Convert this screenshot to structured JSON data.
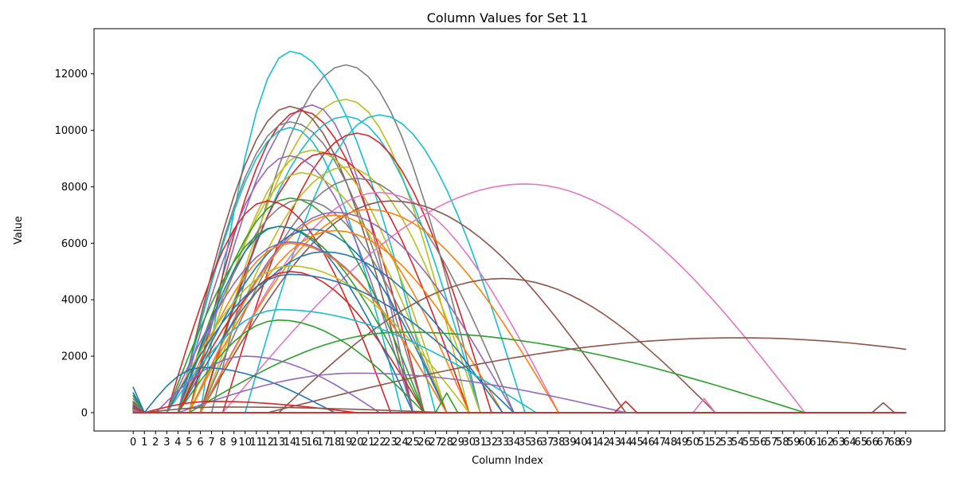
{
  "chart_data": {
    "type": "line",
    "title": "Column Values for Set 11",
    "xlabel": "Column Index",
    "ylabel": "Value",
    "xlim": [
      -3.5,
      72.5
    ],
    "ylim": [
      -650,
      13600
    ],
    "x_ticks": [
      0,
      1,
      2,
      3,
      4,
      5,
      6,
      7,
      8,
      9,
      10,
      11,
      12,
      13,
      14,
      15,
      16,
      17,
      18,
      19,
      20,
      21,
      22,
      23,
      24,
      25,
      26,
      27,
      28,
      29,
      30,
      31,
      32,
      33,
      34,
      35,
      36,
      37,
      38,
      39,
      40,
      41,
      42,
      43,
      44,
      45,
      46,
      47,
      48,
      49,
      50,
      51,
      52,
      53,
      54,
      55,
      56,
      57,
      58,
      59,
      60,
      61,
      62,
      63,
      64,
      65,
      66,
      67,
      68,
      69
    ],
    "y_ticks": [
      0,
      2000,
      4000,
      6000,
      8000,
      10000,
      12000
    ],
    "grid": false,
    "legend": "none",
    "series_count": 50,
    "palette": [
      "#1f77b4",
      "#ff7f0e",
      "#2ca02c",
      "#d62728",
      "#9467bd",
      "#8c564b",
      "#e377c2",
      "#7f7f7f",
      "#bcbd22",
      "#17becf"
    ],
    "series": [
      {
        "color": "#17becf",
        "peak_x": 14,
        "peak_y": 12800,
        "start_x": 6,
        "end_x": 27,
        "y0": 200
      },
      {
        "color": "#7f7f7f",
        "peak_x": 19,
        "peak_y": 12320,
        "start_x": 7,
        "end_x": 31,
        "y0": 120
      },
      {
        "color": "#bcbd22",
        "peak_x": 19,
        "peak_y": 11100,
        "start_x": 6,
        "end_x": 30,
        "y0": 150
      },
      {
        "color": "#9467bd",
        "peak_x": 16,
        "peak_y": 10900,
        "start_x": 5,
        "end_x": 25,
        "y0": 180
      },
      {
        "color": "#8c564b",
        "peak_x": 14,
        "peak_y": 10850,
        "start_x": 4,
        "end_x": 25,
        "y0": 350
      },
      {
        "color": "#d62728",
        "peak_x": 15,
        "peak_y": 10700,
        "start_x": 5,
        "end_x": 26,
        "y0": 100
      },
      {
        "color": "#17becf",
        "peak_x": 22,
        "peak_y": 10550,
        "start_x": 10,
        "end_x": 35,
        "y0": 50
      },
      {
        "color": "#17becf",
        "peak_x": 19,
        "peak_y": 10500,
        "start_x": 6,
        "end_x": 31,
        "y0": 70
      },
      {
        "color": "#7f7f7f",
        "peak_x": 14,
        "peak_y": 10300,
        "start_x": 4,
        "end_x": 26,
        "y0": 300
      },
      {
        "color": "#17becf",
        "peak_x": 14,
        "peak_y": 10100,
        "start_x": 4,
        "end_x": 24,
        "y0": 100
      },
      {
        "color": "#d62728",
        "peak_x": 20,
        "peak_y": 9900,
        "start_x": 8,
        "end_x": 32,
        "y0": 80
      },
      {
        "color": "#bcbd22",
        "peak_x": 16,
        "peak_y": 9300,
        "start_x": 5,
        "end_x": 28,
        "y0": 120
      },
      {
        "color": "#d62728",
        "peak_x": 17,
        "peak_y": 9200,
        "start_x": 6,
        "end_x": 30,
        "y0": 60
      },
      {
        "color": "#9467bd",
        "peak_x": 14,
        "peak_y": 9100,
        "start_x": 4,
        "end_x": 25,
        "y0": 90
      },
      {
        "color": "#bcbd22",
        "peak_x": 19,
        "peak_y": 8700,
        "start_x": 6,
        "end_x": 31,
        "y0": 110
      },
      {
        "color": "#bcbd22",
        "peak_x": 15,
        "peak_y": 8500,
        "start_x": 5,
        "end_x": 28,
        "y0": 130
      },
      {
        "color": "#7f7f7f",
        "peak_x": 20,
        "peak_y": 8300,
        "start_x": 6,
        "end_x": 34,
        "y0": 90
      },
      {
        "color": "#e377c2",
        "peak_x": 35,
        "peak_y": 8100,
        "start_x": 8,
        "end_x": 60,
        "y0": 0
      },
      {
        "color": "#e377c2",
        "peak_x": 22,
        "peak_y": 7800,
        "start_x": 6,
        "end_x": 38,
        "y0": 40
      },
      {
        "color": "#2ca02c",
        "peak_x": 14,
        "peak_y": 7600,
        "start_x": 4,
        "end_x": 26,
        "y0": 600
      },
      {
        "color": "#7f7f7f",
        "peak_x": 15,
        "peak_y": 7550,
        "start_x": 4,
        "end_x": 28,
        "y0": 140
      },
      {
        "color": "#8c564b",
        "peak_x": 23,
        "peak_y": 7500,
        "start_x": 6,
        "end_x": 44,
        "y0": 70
      },
      {
        "color": "#d62728",
        "peak_x": 12,
        "peak_y": 7500,
        "start_x": 3,
        "end_x": 23,
        "y0": 200
      },
      {
        "color": "#ff7f0e",
        "peak_x": 21,
        "peak_y": 7200,
        "start_x": 6,
        "end_x": 38,
        "y0": 300
      },
      {
        "color": "#9467bd",
        "peak_x": 18,
        "peak_y": 7100,
        "start_x": 5,
        "end_x": 34,
        "y0": 100
      },
      {
        "color": "#ff7f0e",
        "peak_x": 18,
        "peak_y": 7000,
        "start_x": 5,
        "end_x": 30,
        "y0": 250
      },
      {
        "color": "#2ca02c",
        "peak_x": 13,
        "peak_y": 6600,
        "start_x": 3,
        "end_x": 26,
        "y0": 400
      },
      {
        "color": "#1f77b4",
        "peak_x": 13,
        "peak_y": 6600,
        "start_x": 4,
        "end_x": 25,
        "y0": 150
      },
      {
        "color": "#1f77b4",
        "peak_x": 16,
        "peak_y": 6500,
        "start_x": 4,
        "end_x": 28,
        "y0": 250
      },
      {
        "color": "#ff7f0e",
        "peak_x": 18,
        "peak_y": 6450,
        "start_x": 5,
        "end_x": 33,
        "y0": 200
      },
      {
        "color": "#9467bd",
        "peak_x": 14,
        "peak_y": 6050,
        "start_x": 3,
        "end_x": 28,
        "y0": 500
      },
      {
        "color": "#ff7f0e",
        "peak_x": 14,
        "peak_y": 6000,
        "start_x": 4,
        "end_x": 28,
        "y0": 120
      },
      {
        "color": "#1f77b4",
        "peak_x": 17,
        "peak_y": 5700,
        "start_x": 4,
        "end_x": 33,
        "y0": 200
      },
      {
        "color": "#bcbd22",
        "peak_x": 14,
        "peak_y": 5200,
        "start_x": 3,
        "end_x": 30,
        "y0": 300
      },
      {
        "color": "#d62728",
        "peak_x": 14,
        "peak_y": 5000,
        "start_x": 4,
        "end_x": 26,
        "y0": 150
      },
      {
        "color": "#1f77b4",
        "peak_x": 14,
        "peak_y": 4900,
        "start_x": 3,
        "end_x": 34,
        "y0": 700
      },
      {
        "color": "#8c564b",
        "peak_x": 33,
        "peak_y": 4750,
        "start_x": 13,
        "end_x": 52,
        "y0": 0
      },
      {
        "color": "#17becf",
        "peak_x": 13,
        "peak_y": 3650,
        "start_x": 3,
        "end_x": 36,
        "y0": 250
      },
      {
        "color": "#2ca02c",
        "peak_x": 13,
        "peak_y": 3280,
        "start_x": 4,
        "end_x": 26,
        "y0": 150
      },
      {
        "color": "#2ca02c",
        "peak_x": 24,
        "peak_y": 2850,
        "start_x": 5,
        "end_x": 60,
        "y0": 600
      },
      {
        "color": "#8c564b",
        "peak_x": 54,
        "peak_y": 2650,
        "start_x": 12,
        "end_x": 96,
        "y0": 0
      },
      {
        "color": "#9467bd",
        "peak_x": 10,
        "peak_y": 2000,
        "start_x": 2,
        "end_x": 22,
        "y0": 300
      },
      {
        "color": "#1f77b4",
        "peak_x": 6,
        "peak_y": 1600,
        "start_x": 1,
        "end_x": 18,
        "y0": 900
      },
      {
        "color": "#9467bd",
        "peak_x": 20,
        "peak_y": 1400,
        "start_x": 4,
        "end_x": 44,
        "y0": 50
      },
      {
        "color": "#d62728",
        "peak_x": 7,
        "peak_y": 400,
        "start_x": 1,
        "end_x": 20,
        "y0": 250
      },
      {
        "color": "#8c564b",
        "peak_x": 8,
        "peak_y": 200,
        "start_x": 1,
        "end_x": 28,
        "y0": 150
      },
      {
        "color": "#2ca02c",
        "peak_x": 28,
        "peak_y": 700,
        "start_x": 27,
        "end_x": 29,
        "y0": 0
      },
      {
        "color": "#e377c2",
        "peak_x": 51,
        "peak_y": 500,
        "start_x": 50,
        "end_x": 52,
        "y0": 0
      },
      {
        "color": "#8c564b",
        "peak_x": 67,
        "peak_y": 350,
        "start_x": 66,
        "end_x": 68,
        "y0": 0
      },
      {
        "color": "#d62728",
        "peak_x": 44,
        "peak_y": 400,
        "start_x": 43,
        "end_x": 45,
        "y0": 0
      }
    ]
  }
}
